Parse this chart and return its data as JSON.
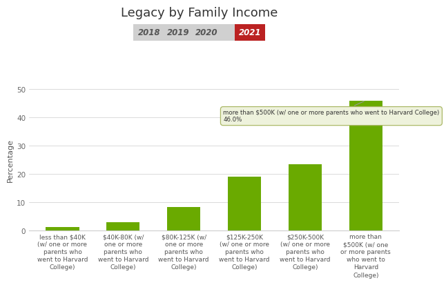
{
  "title": "Legacy by Family Income",
  "ylabel": "Percentage",
  "bar_values": [
    1.3,
    3.0,
    8.3,
    19.2,
    23.5,
    46.0
  ],
  "bar_color": "#6aaa00",
  "categories": [
    "less than $40K\n(w/ one or more\nparents who\nwent to Harvard\nCollege)",
    "$40K-80K (w/\none or more\nparents who\nwent to Harvard\nCollege)",
    "$80K-125K (w/\none or more\nparents who\nwent to Harvard\nCollege)",
    "$125K-250K\n(w/ one or more\nparents who\nwent to Harvard\nCollege)",
    "$250K-500K\n(w/ one or more\nparents who\nwent to Harvard\nCollege)",
    "more than\n$500K (w/ one\nor more parents\nwho went to\nHarvard\nCollege)"
  ],
  "ylim": [
    0,
    50
  ],
  "yticks": [
    0,
    10,
    20,
    30,
    40,
    50
  ],
  "legend_years": [
    "2018",
    "2019",
    "2020",
    "2021"
  ],
  "legend_bg": "#d0d0d0",
  "legend_highlight_color": "#bb2222",
  "annotation_text": "more than $500K (w/ one or more parents who went to Harvard College)\n46.0%",
  "bg_color": "#ffffff",
  "title_fontsize": 13,
  "axis_label_fontsize": 6.5,
  "ylabel_fontsize": 8
}
